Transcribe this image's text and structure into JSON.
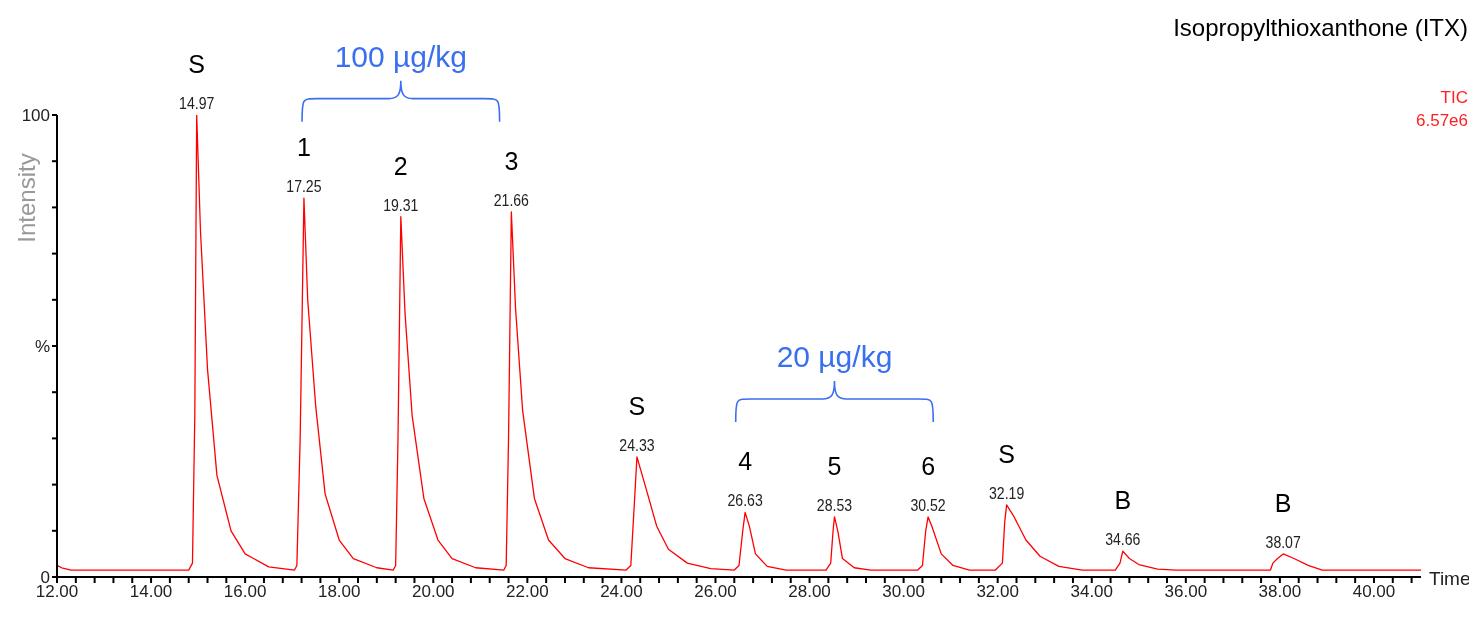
{
  "chart_data": {
    "type": "line",
    "title": "Isopropylthioxanthone (ITX)",
    "xlabel": "Time",
    "ylabel": "Intensity",
    "marker": "none",
    "line_style": "solid",
    "xlim": [
      12,
      41
    ],
    "xticks": [
      {
        "value": 12,
        "label": "12.00"
      },
      {
        "value": 12.4,
        "label": null
      },
      {
        "value": 12.8,
        "label": null
      },
      {
        "value": 13.2,
        "label": null
      },
      {
        "value": 13.6,
        "label": null
      },
      {
        "value": 14,
        "label": "14.00"
      },
      {
        "value": 14.4,
        "label": null
      },
      {
        "value": 14.8,
        "label": null
      },
      {
        "value": 15.2,
        "label": null
      },
      {
        "value": 15.6,
        "label": null
      },
      {
        "value": 16,
        "label": "16.00"
      },
      {
        "value": 16.4,
        "label": null
      },
      {
        "value": 16.8,
        "label": null
      },
      {
        "value": 17.2,
        "label": null
      },
      {
        "value": 17.6,
        "label": null
      },
      {
        "value": 18,
        "label": "18.00"
      },
      {
        "value": 18.4,
        "label": null
      },
      {
        "value": 18.8,
        "label": null
      },
      {
        "value": 19.2,
        "label": null
      },
      {
        "value": 19.6,
        "label": null
      },
      {
        "value": 20,
        "label": "20.00"
      },
      {
        "value": 20.4,
        "label": null
      },
      {
        "value": 20.8,
        "label": null
      },
      {
        "value": 21.2,
        "label": null
      },
      {
        "value": 21.6,
        "label": null
      },
      {
        "value": 22,
        "label": "22.00"
      },
      {
        "value": 22.4,
        "label": null
      },
      {
        "value": 22.8,
        "label": null
      },
      {
        "value": 23.2,
        "label": null
      },
      {
        "value": 23.6,
        "label": null
      },
      {
        "value": 24,
        "label": "24.00"
      },
      {
        "value": 24.4,
        "label": null
      },
      {
        "value": 24.8,
        "label": null
      },
      {
        "value": 25.2,
        "label": null
      },
      {
        "value": 25.6,
        "label": null
      },
      {
        "value": 26,
        "label": "26.00"
      },
      {
        "value": 26.4,
        "label": null
      },
      {
        "value": 26.8,
        "label": null
      },
      {
        "value": 27.2,
        "label": null
      },
      {
        "value": 27.6,
        "label": null
      },
      {
        "value": 28,
        "label": "28.00"
      },
      {
        "value": 28.4,
        "label": null
      },
      {
        "value": 28.8,
        "label": null
      },
      {
        "value": 29.2,
        "label": null
      },
      {
        "value": 29.6,
        "label": null
      },
      {
        "value": 30,
        "label": "30.00"
      },
      {
        "value": 30.4,
        "label": null
      },
      {
        "value": 30.8,
        "label": null
      },
      {
        "value": 31.2,
        "label": null
      },
      {
        "value": 31.6,
        "label": null
      },
      {
        "value": 32,
        "label": "32.00"
      },
      {
        "value": 32.4,
        "label": null
      },
      {
        "value": 32.8,
        "label": null
      },
      {
        "value": 33.2,
        "label": null
      },
      {
        "value": 33.6,
        "label": null
      },
      {
        "value": 34,
        "label": "34.00"
      },
      {
        "value": 34.4,
        "label": null
      },
      {
        "value": 34.8,
        "label": null
      },
      {
        "value": 35.2,
        "label": null
      },
      {
        "value": 35.6,
        "label": null
      },
      {
        "value": 36,
        "label": "36.00"
      },
      {
        "value": 36.4,
        "label": null
      },
      {
        "value": 36.8,
        "label": null
      },
      {
        "value": 37.2,
        "label": null
      },
      {
        "value": 37.6,
        "label": null
      },
      {
        "value": 38,
        "label": "38.00"
      },
      {
        "value": 38.4,
        "label": null
      },
      {
        "value": 38.8,
        "label": null
      },
      {
        "value": 39.2,
        "label": null
      },
      {
        "value": 39.6,
        "label": null
      },
      {
        "value": 40,
        "label": "40.00"
      },
      {
        "value": 40.4,
        "label": null
      },
      {
        "value": 40.8,
        "label": null
      }
    ],
    "ylim": [
      0,
      100
    ],
    "yticks": [
      0,
      {
        "value": 10,
        "label": null
      },
      {
        "value": 20,
        "label": null
      },
      {
        "value": 30,
        "label": null
      },
      {
        "value": 40,
        "label": null
      },
      {
        "value": 50,
        "label": "%"
      },
      {
        "value": 60,
        "label": null
      },
      {
        "value": 70,
        "label": null
      },
      {
        "value": 80,
        "label": null
      },
      {
        "value": 90,
        "label": null
      },
      100
    ],
    "series": [
      {
        "color": "#ff0000",
        "x": [
          12,
          12.1,
          12.3,
          14.8,
          14.88,
          14.93,
          14.97,
          15.05,
          15.2,
          15.4,
          15.7,
          16,
          16.5,
          17.05,
          17.1,
          17.17,
          17.25,
          17.33,
          17.5,
          17.7,
          18,
          18.3,
          18.8,
          19.15,
          19.2,
          19.25,
          19.31,
          19.4,
          19.55,
          19.8,
          20.1,
          20.4,
          20.9,
          21.5,
          21.55,
          21.6,
          21.66,
          21.75,
          21.9,
          22.15,
          22.45,
          22.8,
          23.3,
          24.1,
          24.2,
          24.27,
          24.33,
          24.5,
          24.75,
          25,
          25.4,
          25.9,
          26.4,
          26.5,
          26.58,
          26.63,
          26.72,
          26.85,
          27.1,
          27.5,
          28.35,
          28.45,
          28.5,
          28.53,
          28.6,
          28.7,
          28.95,
          29.3,
          30.3,
          30.4,
          30.47,
          30.52,
          30.6,
          30.8,
          31.05,
          31.4,
          31.95,
          32.1,
          32.15,
          32.19,
          32.35,
          32.6,
          32.9,
          33.3,
          33.8,
          34.5,
          34.6,
          34.66,
          34.8,
          35,
          35.4,
          35.8,
          37.8,
          37.85,
          37.95,
          38.07,
          38.3,
          38.6,
          38.9,
          41
        ],
        "values": [
          2.5,
          2,
          1.5,
          1.5,
          3,
          35,
          100,
          75,
          45,
          22,
          10,
          5,
          2.2,
          1.5,
          2.5,
          30,
          82,
          60,
          37,
          18,
          8,
          4,
          2,
          1.5,
          2.5,
          30,
          78,
          57,
          35,
          17,
          8,
          4,
          2,
          1.5,
          2.5,
          30,
          79,
          58,
          36,
          17,
          8,
          4,
          2,
          1.5,
          2.5,
          15,
          26,
          20,
          11,
          6,
          3,
          1.8,
          1.5,
          2.5,
          10,
          14,
          11,
          5,
          2.3,
          1.5,
          1.5,
          3,
          10,
          13,
          10,
          4,
          2,
          1.5,
          1.5,
          2.5,
          10,
          13,
          11,
          5,
          2.5,
          1.5,
          1.5,
          3,
          12,
          15.6,
          13,
          8,
          4.5,
          2.3,
          1.5,
          1.5,
          3,
          5.6,
          4,
          2.7,
          1.7,
          1.5,
          1.5,
          3,
          4,
          5,
          4,
          2.5,
          1.5,
          1.5
        ]
      }
    ],
    "annotations": [
      "TIC",
      "6.57e6",
      {
        "text": "14.97",
        "x": 14.97,
        "y": 100
      },
      {
        "text": "S",
        "x": 14.97,
        "y": 100
      },
      {
        "text": "17.25",
        "x": 17.25,
        "y": 82
      },
      {
        "text": "1",
        "x": 17.25,
        "y": 82
      },
      {
        "text": "19.31",
        "x": 19.31,
        "y": 78
      },
      {
        "text": "2",
        "x": 19.31,
        "y": 78
      },
      "100 µg/kg",
      {
        "text": "21.66",
        "x": 21.66,
        "y": 79
      },
      {
        "text": "3",
        "x": 21.66,
        "y": 79
      },
      {
        "text": "24.33",
        "x": 24.33,
        "y": 26
      },
      {
        "text": "S",
        "x": 24.33,
        "y": 26
      },
      {
        "text": "26.63",
        "x": 26.63,
        "y": 14
      },
      {
        "text": "4",
        "x": 26.63,
        "y": 14
      },
      {
        "text": "28.53",
        "x": 28.53,
        "y": 13
      },
      {
        "text": "5",
        "x": 28.53,
        "y": 13
      },
      "20 µg/kg",
      {
        "text": "30.52",
        "x": 30.52,
        "y": 13
      },
      {
        "text": "6",
        "x": 30.52,
        "y": 13
      },
      {
        "text": "32.19",
        "x": 32.19,
        "y": 15.6
      },
      {
        "text": "S",
        "x": 32.19,
        "y": 15.6
      },
      {
        "text": "34.66",
        "x": 34.66,
        "y": 5.6
      },
      {
        "text": "B",
        "x": 34.66,
        "y": 5.6
      },
      {
        "text": "38.07",
        "x": 38.07,
        "y": 5
      },
      {
        "text": "B",
        "x": 38.07,
        "y": 5
      }
    ]
  }
}
